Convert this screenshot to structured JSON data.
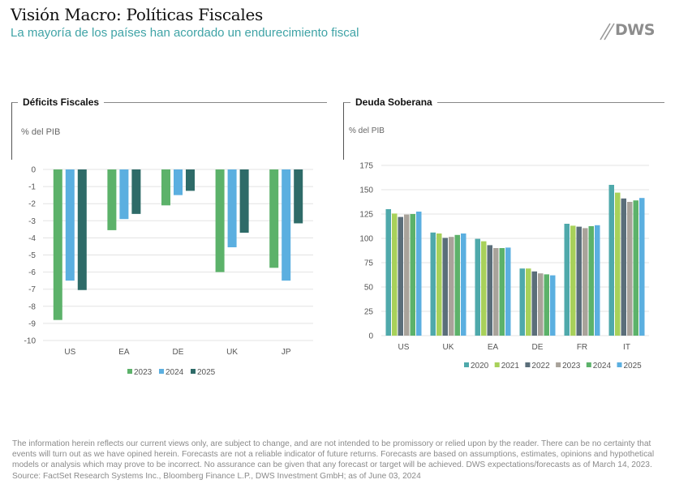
{
  "header": {
    "title": "Visión Macro: Políticas Fiscales",
    "subtitle": "La mayoría de los países han acordado un endurecimiento fiscal",
    "logo_text": "DWS",
    "logo_icon": "double-slash-icon"
  },
  "colors": {
    "subtitle": "#3fa3a6",
    "y2020": "#4fa9ab",
    "y2021": "#a8d15a",
    "y2022": "#5b6e7a",
    "y2023": "#a9a39b",
    "y2024_green": "#5cb26a",
    "y2024_blue": "#5bafe0",
    "y2025_blue": "#5bafe0",
    "y2025_dark": "#2e6b68"
  },
  "chart_data": [
    {
      "type": "bar",
      "title": "Déficits Fiscales",
      "ylabel": "% del PIB",
      "xlabel": "",
      "ylim": [
        -10,
        0
      ],
      "yticks": [
        0,
        -1,
        -2,
        -3,
        -4,
        -5,
        -6,
        -7,
        -8,
        -9,
        -10
      ],
      "grid": true,
      "legend": "bottom-center",
      "categories": [
        "US",
        "EA",
        "DE",
        "UK",
        "JP"
      ],
      "series": [
        {
          "name": "2023",
          "color": "#5cb26a",
          "values": [
            -8.8,
            -3.55,
            -2.1,
            -6.0,
            -5.75
          ]
        },
        {
          "name": "2024",
          "color": "#5bafe0",
          "values": [
            -6.5,
            -2.9,
            -1.5,
            -4.55,
            -6.5
          ]
        },
        {
          "name": "2025",
          "color": "#2e6b68",
          "values": [
            -7.05,
            -2.6,
            -1.25,
            -3.7,
            -3.15
          ]
        }
      ]
    },
    {
      "type": "bar",
      "title": "Deuda Soberana",
      "ylabel": "% del PIB",
      "xlabel": "",
      "ylim": [
        0,
        175
      ],
      "yticks": [
        175,
        150,
        125,
        100,
        75,
        50,
        25,
        0
      ],
      "grid": true,
      "legend": "bottom-right",
      "categories": [
        "US",
        "UK",
        "EA",
        "DE",
        "FR",
        "IT"
      ],
      "series": [
        {
          "name": "2020",
          "color": "#4fa9ab",
          "values": [
            130,
            106,
            99.5,
            69,
            115,
            155
          ]
        },
        {
          "name": "2021",
          "color": "#a8d15a",
          "values": [
            125.5,
            105,
            97,
            69,
            113,
            147
          ]
        },
        {
          "name": "2022",
          "color": "#5b6e7a",
          "values": [
            122,
            100.5,
            93,
            66,
            112,
            141
          ]
        },
        {
          "name": "2023",
          "color": "#a9a39b",
          "values": [
            124.5,
            101.5,
            90,
            64,
            110.5,
            137.5
          ]
        },
        {
          "name": "2024",
          "color": "#5cb26a",
          "values": [
            125,
            103.5,
            90,
            63,
            112.5,
            139
          ]
        },
        {
          "name": "2025",
          "color": "#5bafe0",
          "values": [
            127.5,
            105,
            90.5,
            62,
            113.5,
            141.5
          ]
        }
      ]
    }
  ],
  "disclaimer": "The information herein reflects our current views only, are subject to change, and are not intended to be promissory or relied upon by the reader. There can be no certainty that events will turn out as we have opined herein. Forecasts are not a reliable indicator of future returns. Forecasts are based on assumptions, estimates, opinions and hypothetical models or analysis which may prove to be incorrect. No assurance can be given that any forecast or target will be achieved. DWS expectations/forecasts as of March 14, 2023.",
  "source": "Source: FactSet Research Systems Inc., Bloomberg Finance L.P., DWS Investment GmbH; as of June 03, 2024"
}
